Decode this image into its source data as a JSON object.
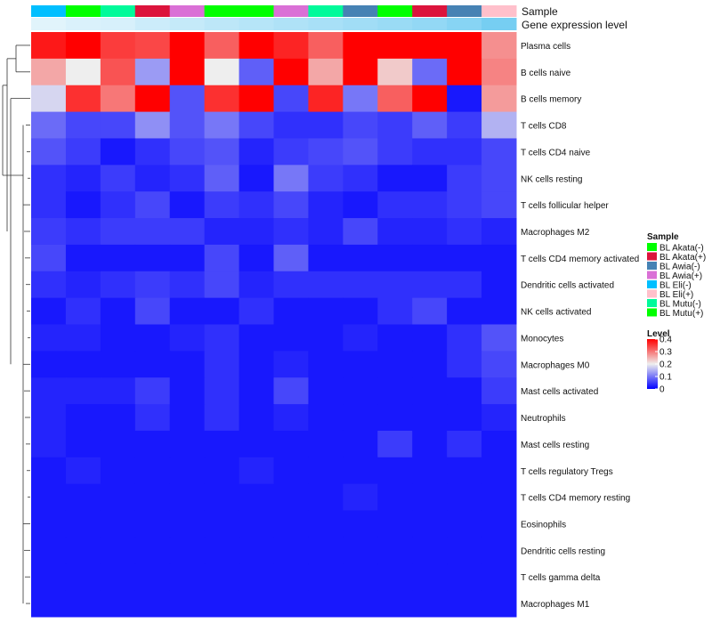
{
  "chart_data": {
    "type": "heatmap",
    "annotation_labels": [
      "Sample",
      "Gene expression level"
    ],
    "column_samples": [
      "BL Eli(-)",
      "BL Mutu(+)",
      "BL Mutu(-)",
      "BL Akata(+)",
      "BL Awia(+)",
      "BL Akata(-)",
      "BL Mutu(+)",
      "BL Awia(+)",
      "BL Mutu(-)",
      "BL Awia(-)",
      "BL Akata(-)",
      "BL Akata(+)",
      "BL Awia(-)",
      "BL Eli(+)"
    ],
    "gene_expression_level": [
      0.05,
      0.1,
      0.12,
      0.2,
      0.25,
      0.3,
      0.35,
      0.4,
      0.45,
      0.5,
      0.55,
      0.6,
      0.68,
      0.8
    ],
    "rows": [
      "Plasma cells",
      "B cells naive",
      "B cells memory",
      "T cells CD8",
      "T cells CD4 naive",
      "NK cells resting",
      "T cells follicular helper",
      "Macrophages M2",
      "T cells CD4 memory activated",
      "Dendritic cells activated",
      "NK cells activated",
      "Monocytes",
      "Macrophages M0",
      "Mast cells activated",
      "Neutrophils",
      "Mast cells resting",
      "T cells regulatory  Tregs",
      "T cells CD4 memory resting",
      "Eosinophils",
      "Dendritic cells resting",
      "T cells gamma delta",
      "Macrophages M1"
    ],
    "values": [
      [
        0.38,
        0.41,
        0.35,
        0.34,
        0.43,
        0.32,
        0.42,
        0.37,
        0.32,
        0.41,
        0.4,
        0.4,
        0.44,
        0.28
      ],
      [
        0.26,
        0.2,
        0.33,
        0.13,
        0.48,
        0.2,
        0.08,
        0.49,
        0.26,
        0.4,
        0.23,
        0.09,
        0.48,
        0.29
      ],
      [
        0.18,
        0.36,
        0.3,
        0.41,
        0.07,
        0.36,
        0.46,
        0.06,
        0.37,
        0.1,
        0.32,
        0.46,
        0.02,
        0.27
      ],
      [
        0.09,
        0.06,
        0.06,
        0.12,
        0.07,
        0.1,
        0.06,
        0.04,
        0.04,
        0.06,
        0.05,
        0.08,
        0.05,
        0.15
      ],
      [
        0.07,
        0.05,
        0.02,
        0.04,
        0.06,
        0.07,
        0.03,
        0.05,
        0.06,
        0.07,
        0.05,
        0.04,
        0.04,
        0.06
      ],
      [
        0.04,
        0.03,
        0.05,
        0.03,
        0.04,
        0.08,
        0.02,
        0.1,
        0.05,
        0.04,
        0.02,
        0.02,
        0.05,
        0.06
      ],
      [
        0.04,
        0.02,
        0.04,
        0.06,
        0.02,
        0.05,
        0.04,
        0.06,
        0.03,
        0.02,
        0.04,
        0.04,
        0.05,
        0.06
      ],
      [
        0.05,
        0.04,
        0.05,
        0.05,
        0.05,
        0.03,
        0.03,
        0.04,
        0.03,
        0.06,
        0.03,
        0.03,
        0.04,
        0.03
      ],
      [
        0.06,
        0.02,
        0.02,
        0.02,
        0.02,
        0.06,
        0.02,
        0.08,
        0.02,
        0.02,
        0.02,
        0.02,
        0.02,
        0.02
      ],
      [
        0.04,
        0.03,
        0.04,
        0.05,
        0.04,
        0.06,
        0.03,
        0.04,
        0.04,
        0.04,
        0.04,
        0.04,
        0.04,
        0.02
      ],
      [
        0.02,
        0.04,
        0.02,
        0.06,
        0.02,
        0.02,
        0.04,
        0.02,
        0.02,
        0.02,
        0.04,
        0.06,
        0.02,
        0.02
      ],
      [
        0.03,
        0.03,
        0.02,
        0.02,
        0.03,
        0.04,
        0.02,
        0.02,
        0.02,
        0.03,
        0.02,
        0.02,
        0.04,
        0.07
      ],
      [
        0.02,
        0.02,
        0.02,
        0.02,
        0.02,
        0.04,
        0.02,
        0.03,
        0.02,
        0.02,
        0.02,
        0.02,
        0.04,
        0.06
      ],
      [
        0.03,
        0.03,
        0.03,
        0.05,
        0.02,
        0.04,
        0.02,
        0.06,
        0.02,
        0.02,
        0.02,
        0.02,
        0.02,
        0.05
      ],
      [
        0.03,
        0.02,
        0.02,
        0.04,
        0.02,
        0.04,
        0.02,
        0.03,
        0.02,
        0.02,
        0.02,
        0.02,
        0.02,
        0.03
      ],
      [
        0.03,
        0.02,
        0.02,
        0.02,
        0.02,
        0.02,
        0.02,
        0.02,
        0.02,
        0.02,
        0.05,
        0.02,
        0.04,
        0.02
      ],
      [
        0.02,
        0.03,
        0.02,
        0.02,
        0.02,
        0.02,
        0.03,
        0.02,
        0.02,
        0.02,
        0.02,
        0.02,
        0.02,
        0.02
      ],
      [
        0.02,
        0.02,
        0.02,
        0.02,
        0.02,
        0.02,
        0.02,
        0.02,
        0.02,
        0.03,
        0.02,
        0.02,
        0.02,
        0.02
      ],
      [
        0.02,
        0.02,
        0.02,
        0.02,
        0.02,
        0.02,
        0.02,
        0.02,
        0.02,
        0.02,
        0.02,
        0.02,
        0.02,
        0.02
      ],
      [
        0.02,
        0.02,
        0.02,
        0.02,
        0.02,
        0.02,
        0.02,
        0.02,
        0.02,
        0.02,
        0.02,
        0.02,
        0.02,
        0.02
      ],
      [
        0.02,
        0.02,
        0.02,
        0.02,
        0.02,
        0.02,
        0.02,
        0.02,
        0.02,
        0.02,
        0.02,
        0.02,
        0.02,
        0.02
      ],
      [
        0.02,
        0.02,
        0.02,
        0.02,
        0.02,
        0.02,
        0.02,
        0.02,
        0.02,
        0.02,
        0.02,
        0.02,
        0.02,
        0.02
      ]
    ],
    "row_dendrogram": true,
    "color_scale": {
      "stops": [
        {
          "value": 0,
          "color": "#0000ff"
        },
        {
          "value": 0.2,
          "color": "#eeeeee"
        },
        {
          "value": 0.4,
          "color": "#ff0000"
        }
      ],
      "range": [
        0,
        0.4
      ]
    },
    "legend": {
      "placement": "right",
      "sample_title": "Sample",
      "sample_entries": [
        {
          "label": "BL Akata(-)",
          "color": "#00ff00"
        },
        {
          "label": "BL Akata(+)",
          "color": "#dc143c"
        },
        {
          "label": "BL Awia(-)",
          "color": "#4682b4"
        },
        {
          "label": "BL Awia(+)",
          "color": "#da70d6"
        },
        {
          "label": "BL Eli(-)",
          "color": "#00bfff"
        },
        {
          "label": "BL Eli(+)",
          "color": "#ffc0cb"
        },
        {
          "label": "BL Mutu(-)",
          "color": "#00fa9a"
        },
        {
          "label": "BL Mutu(+)",
          "color": "#00ff00"
        }
      ],
      "level_title": "Level",
      "level_ticks": [
        "0.4",
        "0.3",
        "0.2",
        "0.1",
        "0"
      ],
      "level_tick_values": [
        0.4,
        0.3,
        0.2,
        0.1,
        0
      ]
    }
  }
}
